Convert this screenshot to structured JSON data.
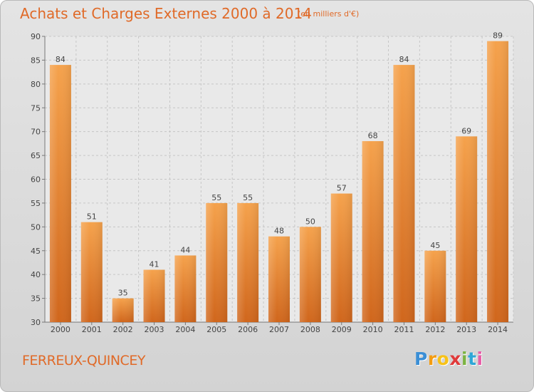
{
  "title": "Achats et Charges Externes 2000 à 2014",
  "subtitle": "(en milliers d'€)",
  "commune": "FERREUX-QUINCEY",
  "logo": {
    "letters": [
      "P",
      "r",
      "o",
      "x",
      "i",
      "t",
      "i"
    ],
    "colors": [
      "#3b8fd6",
      "#f39c12",
      "#f7c218",
      "#e03a3a",
      "#7cb342",
      "#2fa7d6",
      "#e75ea8"
    ]
  },
  "chart_data": {
    "type": "bar",
    "categories": [
      "2000",
      "2001",
      "2002",
      "2003",
      "2004",
      "2005",
      "2006",
      "2007",
      "2008",
      "2009",
      "2010",
      "2011",
      "2012",
      "2013",
      "2014"
    ],
    "values": [
      84,
      51,
      35,
      41,
      44,
      55,
      55,
      48,
      50,
      57,
      68,
      84,
      45,
      69,
      89
    ],
    "ylim": [
      30,
      90
    ],
    "yticks": [
      30,
      35,
      40,
      45,
      50,
      55,
      60,
      65,
      70,
      75,
      80,
      85,
      90
    ],
    "grid": true,
    "bar_color": "#f08a2c"
  }
}
